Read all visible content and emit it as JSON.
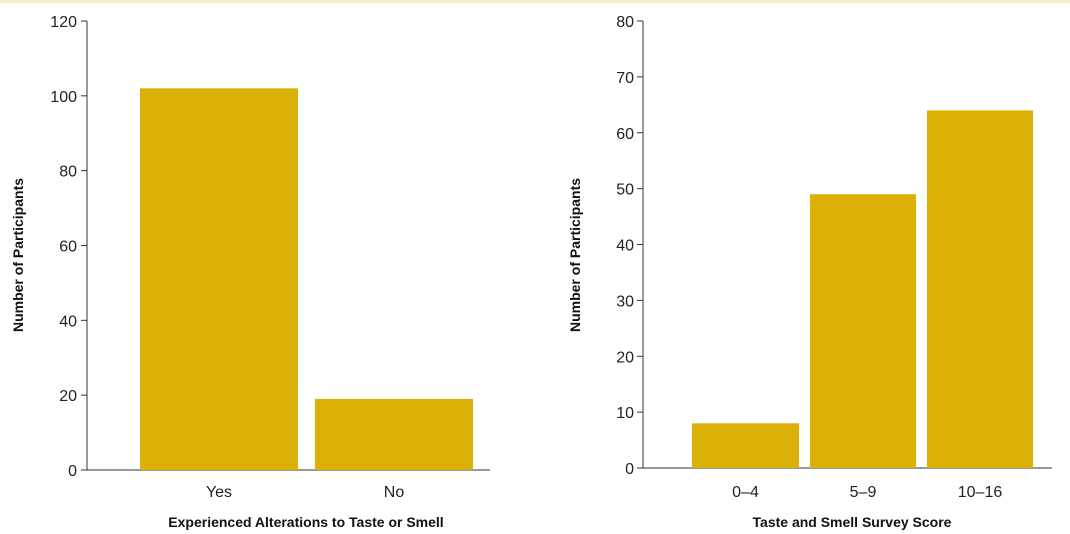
{
  "chart_data": [
    {
      "type": "bar",
      "categories": [
        "Yes",
        "No"
      ],
      "values": [
        102,
        19
      ],
      "xlabel": "Experienced Alterations to Taste or Smell",
      "ylabel": "Number of Participants",
      "ylim": [
        0,
        120
      ],
      "yticks": [
        0,
        20,
        40,
        60,
        80,
        100,
        120
      ],
      "bar_color": "#dbb108",
      "grid": false
    },
    {
      "type": "bar",
      "categories": [
        "0–4",
        "5–9",
        "10–16"
      ],
      "values": [
        8,
        49,
        64
      ],
      "xlabel": "Taste and Smell Survey Score",
      "ylabel": "Number of Participants",
      "ylim": [
        0,
        80
      ],
      "yticks": [
        0,
        10,
        20,
        30,
        40,
        50,
        60,
        70,
        80
      ],
      "bar_color": "#dbb108",
      "grid": false
    }
  ]
}
